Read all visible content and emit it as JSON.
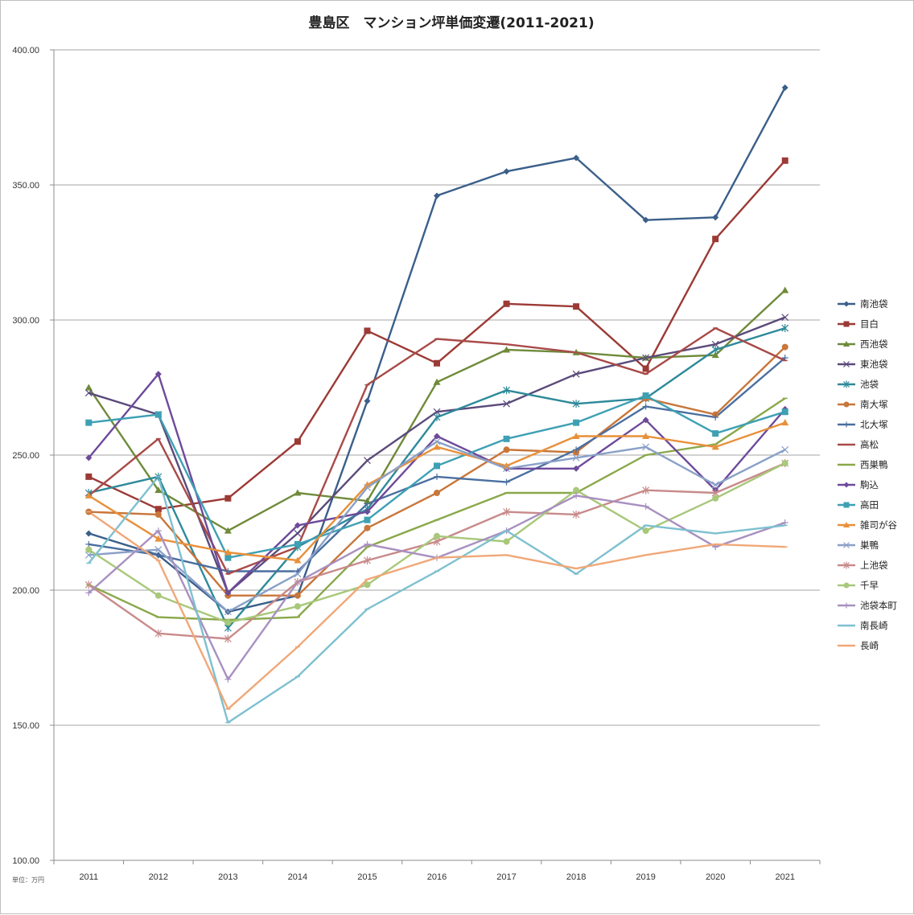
{
  "chart_data": {
    "type": "line",
    "title": "豊島区　マンション坪単価変遷(2011-2021)",
    "unit_note": "単位：万円",
    "x": [
      "2011",
      "2012",
      "2013",
      "2014",
      "2015",
      "2016",
      "2017",
      "2018",
      "2019",
      "2020",
      "2021"
    ],
    "ylim": [
      100,
      400
    ],
    "yticks": [
      "100.00",
      "150.00",
      "200.00",
      "250.00",
      "300.00",
      "350.00",
      "400.00"
    ],
    "ytick_values": [
      100,
      150,
      200,
      250,
      300,
      350,
      400
    ],
    "grid": true,
    "legend_position": "right",
    "series": [
      {
        "name": "南池袋",
        "color": "#3a5f8a",
        "marker": "diamond",
        "values": [
          221,
          213,
          192,
          198,
          270,
          346,
          355,
          360,
          337,
          338,
          386
        ]
      },
      {
        "name": "目白",
        "color": "#9c3a36",
        "marker": "square",
        "values": [
          242,
          230,
          234,
          255,
          296,
          284,
          306,
          305,
          282,
          330,
          359
        ]
      },
      {
        "name": "西池袋",
        "color": "#6f8a3a",
        "marker": "triangle",
        "values": [
          275,
          237,
          222,
          236,
          233,
          277,
          289,
          288,
          286,
          287,
          311
        ]
      },
      {
        "name": "東池袋",
        "color": "#5a4a7a",
        "marker": "x",
        "values": [
          273,
          265,
          199,
          221,
          248,
          266,
          269,
          280,
          286,
          291,
          301
        ]
      },
      {
        "name": "池袋",
        "color": "#2e8a9a",
        "marker": "star",
        "values": [
          236,
          242,
          186,
          216,
          230,
          264,
          274,
          269,
          271,
          289,
          297
        ]
      },
      {
        "name": "南大塚",
        "color": "#c8763a",
        "marker": "circle",
        "values": [
          229,
          228,
          198,
          198,
          223,
          236,
          252,
          251,
          271,
          265,
          290
        ]
      },
      {
        "name": "北大塚",
        "color": "#4a6fa0",
        "marker": "plus",
        "values": [
          217,
          213,
          207,
          207,
          232,
          242,
          240,
          252,
          268,
          264,
          286
        ]
      },
      {
        "name": "高松",
        "color": "#a84a48",
        "marker": "dash",
        "values": [
          235,
          256,
          206,
          216,
          276,
          293,
          291,
          288,
          280,
          297,
          285
        ]
      },
      {
        "name": "西巣鴨",
        "color": "#8aa84a",
        "marker": "dash",
        "values": [
          202,
          190,
          189,
          190,
          216,
          226,
          236,
          236,
          250,
          254,
          271
        ]
      },
      {
        "name": "駒込",
        "color": "#6e4a9a",
        "marker": "diamond",
        "values": [
          249,
          280,
          199,
          224,
          229,
          257,
          245,
          245,
          263,
          237,
          267
        ]
      },
      {
        "name": "高田",
        "color": "#3ea0b4",
        "marker": "square",
        "values": [
          262,
          265,
          212,
          217,
          226,
          246,
          256,
          262,
          272,
          258,
          266
        ]
      },
      {
        "name": "雑司が谷",
        "color": "#e8903a",
        "marker": "triangle",
        "values": [
          235,
          219,
          214,
          211,
          239,
          253,
          246,
          257,
          257,
          253,
          262
        ]
      },
      {
        "name": "巣鴨",
        "color": "#8aa0c8",
        "marker": "x",
        "values": [
          213,
          215,
          192,
          206,
          238,
          255,
          245,
          249,
          253,
          239,
          252
        ]
      },
      {
        "name": "上池袋",
        "color": "#c88a8a",
        "marker": "star",
        "values": [
          202,
          184,
          182,
          203,
          211,
          218,
          229,
          228,
          237,
          236,
          247
        ]
      },
      {
        "name": "千早",
        "color": "#a8c87a",
        "marker": "circle",
        "values": [
          215,
          198,
          188,
          194,
          202,
          220,
          218,
          237,
          222,
          234,
          247
        ]
      },
      {
        "name": "池袋本町",
        "color": "#a890c0",
        "marker": "plus",
        "values": [
          199,
          222,
          167,
          203,
          217,
          212,
          222,
          235,
          231,
          216,
          225
        ]
      },
      {
        "name": "南長崎",
        "color": "#7ec0d0",
        "marker": "dash",
        "values": [
          210,
          242,
          151,
          168,
          193,
          207,
          222,
          206,
          224,
          221,
          224
        ]
      },
      {
        "name": "長崎",
        "color": "#f0a878",
        "marker": "dash",
        "values": [
          229,
          211,
          156,
          179,
          204,
          212,
          213,
          208,
          213,
          217,
          216
        ]
      }
    ]
  }
}
